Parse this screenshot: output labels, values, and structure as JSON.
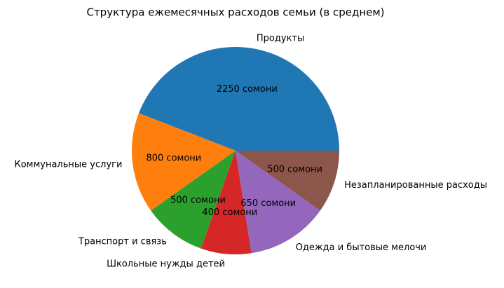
{
  "chart_data": {
    "type": "pie",
    "title": "Структура ежемесячных расходов семьи (в среднем)",
    "categories": [
      "Продукты",
      "Коммунальные услуги",
      "Транспорт и связь",
      "Школьные нужды детей",
      "Одежда и бытовые мелочи",
      "Незапланированные расходы"
    ],
    "values": [
      2250,
      800,
      500,
      400,
      650,
      500
    ],
    "value_labels": [
      "2250 сомони",
      "800 сомони",
      "500 сомони",
      "400 сомони",
      "650 сомони",
      "500 сомони"
    ],
    "colors": [
      "#1f77b4",
      "#ff7f0e",
      "#2ca02c",
      "#d62728",
      "#9467bd",
      "#8c564b"
    ]
  }
}
